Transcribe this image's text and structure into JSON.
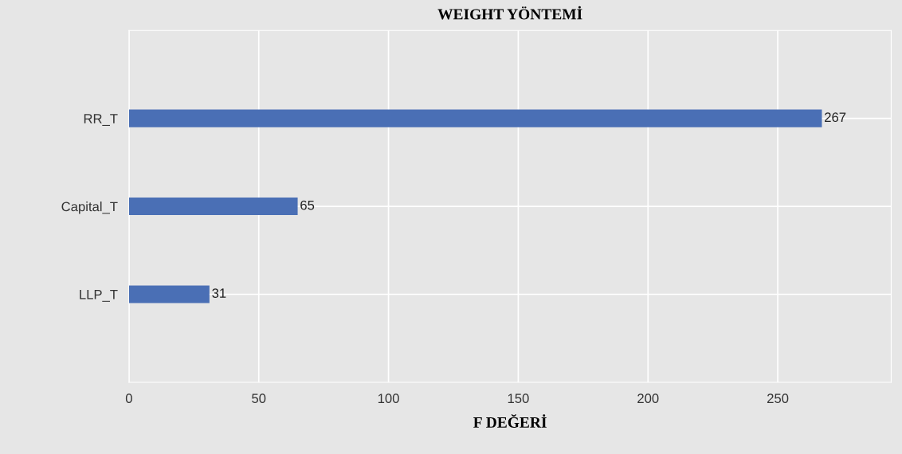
{
  "chart_data": {
    "type": "bar",
    "orientation": "horizontal",
    "title": "WEIGHT YÖNTEMİ",
    "xlabel": "F DEĞERİ",
    "categories": [
      "RR_T",
      "Capital_T",
      "LLP_T"
    ],
    "values": [
      267,
      65,
      31
    ],
    "color": "#4a6fb5",
    "xlim": [
      0,
      293.7
    ],
    "xticks": [
      0,
      50,
      100,
      150,
      200,
      250
    ],
    "grid": true,
    "data_labels": true
  }
}
